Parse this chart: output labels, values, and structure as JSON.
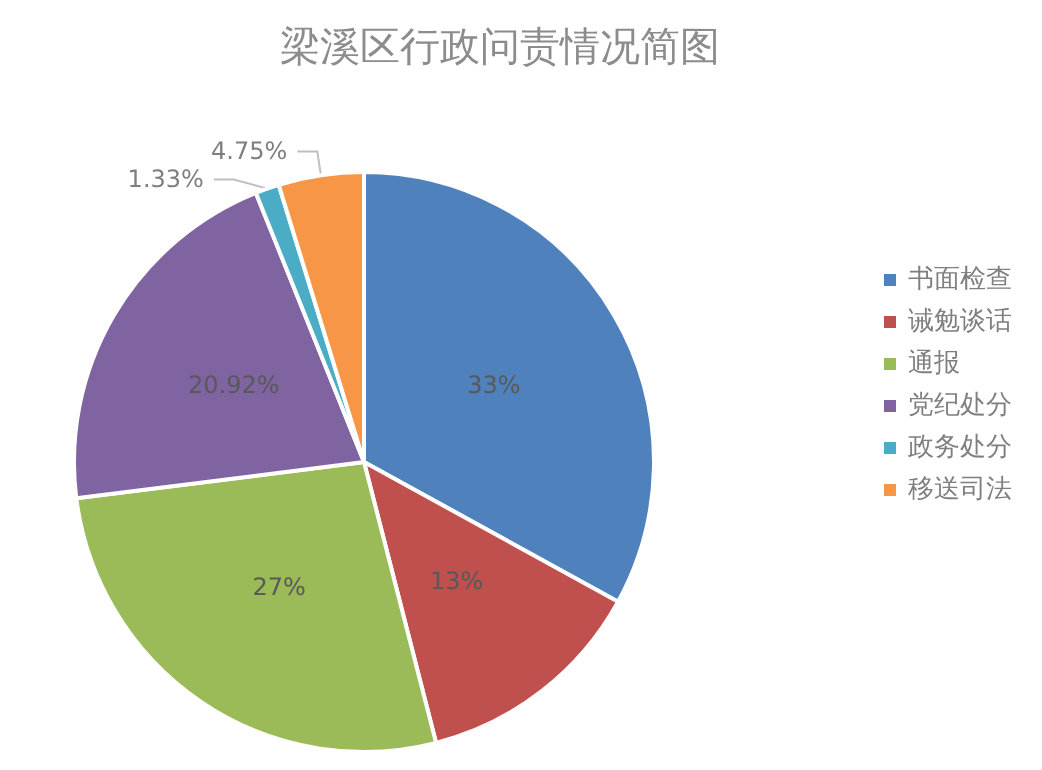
{
  "chart_data": {
    "type": "pie",
    "title": "梁溪区行政问责情况简图",
    "categories": [
      "书面检查",
      "诫勉谈话",
      "通报",
      "党纪处分",
      "政务处分",
      "移送司法"
    ],
    "values": [
      33,
      13,
      27,
      20.92,
      1.33,
      4.75
    ],
    "colors": [
      "#4f81bd",
      "#c0504d",
      "#9bbb59",
      "#8064a2",
      "#4bacc6",
      "#f79646"
    ],
    "value_labels": [
      "33%",
      "13%",
      "27%",
      "20.92%",
      "1.33%",
      "4.75%"
    ],
    "legend": "right"
  }
}
